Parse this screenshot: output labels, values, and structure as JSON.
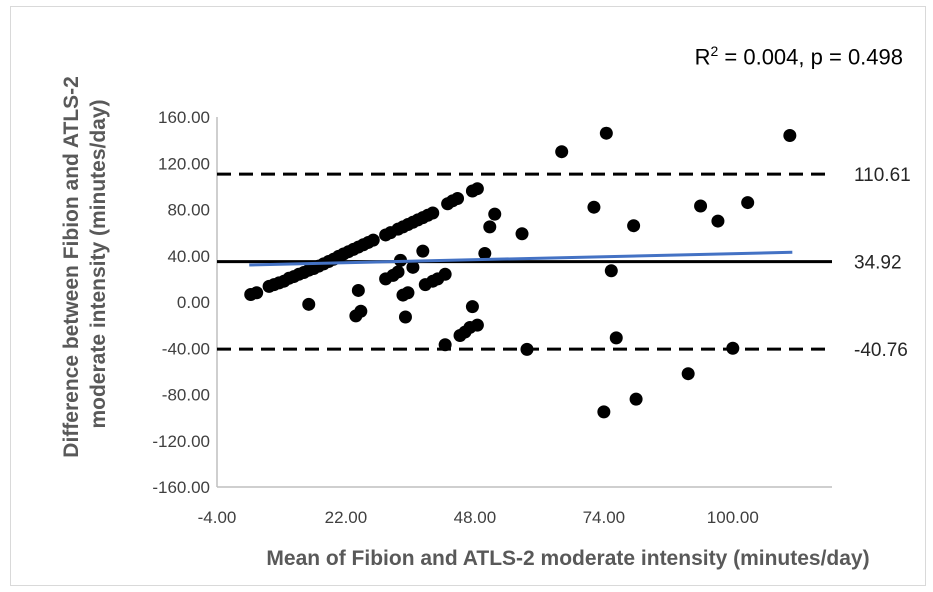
{
  "chart_data": {
    "type": "scatter",
    "title": "",
    "stats_text": {
      "prefix": "R",
      "superscript": "2",
      "rest": " = 0.004, p = 0.498"
    },
    "xlabel": "Mean of Fibion and ATLS-2 moderate intensity (minutes/day)",
    "ylabel_lines": [
      "Difference between Fibion and ATLS-2",
      "moderate intensity (minutes/day)"
    ],
    "xlim": [
      -4,
      120
    ],
    "ylim": [
      -160,
      160
    ],
    "x_ticks": [
      "-4.00",
      "22.00",
      "48.00",
      "74.00",
      "100.00"
    ],
    "x_tick_values": [
      -4,
      22,
      48,
      74,
      100
    ],
    "y_ticks": [
      "160.00",
      "120.00",
      "80.00",
      "40.00",
      "0.00",
      "-40.00",
      "-80.00",
      "-120.00",
      "-160.00"
    ],
    "y_tick_values": [
      160,
      120,
      80,
      40,
      0,
      -40,
      -80,
      -120,
      -160
    ],
    "grid": false,
    "reference_lines": [
      {
        "value": 110.61,
        "label": "110.61",
        "style": "dashed"
      },
      {
        "value": 34.92,
        "label": "34.92",
        "style": "solid"
      },
      {
        "value": -40.76,
        "label": "-40.76",
        "style": "dashed"
      }
    ],
    "trend_line": {
      "x": [
        2.5,
        112
      ],
      "y": [
        32,
        43
      ],
      "color": "#4472c4"
    },
    "point_color": "#000000",
    "points": [
      [
        2.8,
        6.5
      ],
      [
        4.0,
        8.0
      ],
      [
        6.5,
        13.5
      ],
      [
        7.5,
        15.0
      ],
      [
        8.5,
        16.5
      ],
      [
        9.5,
        18.0
      ],
      [
        10.5,
        20.5
      ],
      [
        11.5,
        22.0
      ],
      [
        12.5,
        24.0
      ],
      [
        13.5,
        25.5
      ],
      [
        14.5,
        27.5
      ],
      [
        15.5,
        29.0
      ],
      [
        16.5,
        31.0
      ],
      [
        17.5,
        33.0
      ],
      [
        18.5,
        35.0
      ],
      [
        19.5,
        37.0
      ],
      [
        20.5,
        39.5
      ],
      [
        21.5,
        41.5
      ],
      [
        22.5,
        43.5
      ],
      [
        23.5,
        45.5
      ],
      [
        24.5,
        47.5
      ],
      [
        25.5,
        49.5
      ],
      [
        26.5,
        51.5
      ],
      [
        27.5,
        53.5
      ],
      [
        30.0,
        58.0
      ],
      [
        31.0,
        60.0
      ],
      [
        32.5,
        63.0
      ],
      [
        33.5,
        65.0
      ],
      [
        34.5,
        67.0
      ],
      [
        35.5,
        69.0
      ],
      [
        36.5,
        71.0
      ],
      [
        37.5,
        73.0
      ],
      [
        38.5,
        75.0
      ],
      [
        39.5,
        77.0
      ],
      [
        42.5,
        85.0
      ],
      [
        43.5,
        87.5
      ],
      [
        44.5,
        89.5
      ],
      [
        47.5,
        96.0
      ],
      [
        48.5,
        98.0
      ],
      [
        14.5,
        -2.0
      ],
      [
        24.0,
        -12.0
      ],
      [
        25.0,
        -8.0
      ],
      [
        24.5,
        10.0
      ],
      [
        30.0,
        20.0
      ],
      [
        31.5,
        23.0
      ],
      [
        32.5,
        26.0
      ],
      [
        33.0,
        36.0
      ],
      [
        33.5,
        6.0
      ],
      [
        34.0,
        -13.0
      ],
      [
        34.5,
        8.0
      ],
      [
        35.5,
        30.0
      ],
      [
        37.5,
        44.0
      ],
      [
        38.0,
        15.0
      ],
      [
        39.5,
        18.0
      ],
      [
        40.5,
        20.0
      ],
      [
        42.0,
        24.0
      ],
      [
        42.0,
        -37.0
      ],
      [
        45.0,
        -29.0
      ],
      [
        46.0,
        -26.0
      ],
      [
        47.0,
        -22.0
      ],
      [
        47.5,
        -4.0
      ],
      [
        48.5,
        -20.0
      ],
      [
        50.0,
        42.0
      ],
      [
        51.0,
        65.0
      ],
      [
        52.0,
        76.0
      ],
      [
        57.5,
        59.0
      ],
      [
        58.5,
        -41.0
      ],
      [
        65.5,
        130.0
      ],
      [
        72.0,
        82.0
      ],
      [
        74.5,
        146.0
      ],
      [
        75.5,
        27.0
      ],
      [
        74.0,
        -95.0
      ],
      [
        76.5,
        -31.0
      ],
      [
        80.0,
        66.0
      ],
      [
        80.5,
        -84.0
      ],
      [
        91.0,
        -62.0
      ],
      [
        93.5,
        83.0
      ],
      [
        97.0,
        70.0
      ],
      [
        100.0,
        -40.0
      ],
      [
        103.0,
        86.0
      ],
      [
        111.5,
        144.0
      ]
    ]
  }
}
